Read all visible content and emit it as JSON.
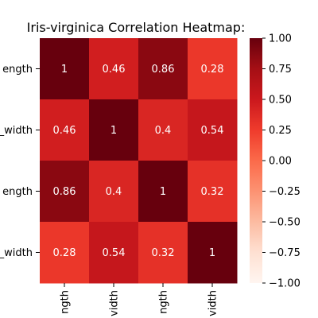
{
  "chart_data": {
    "type": "heatmap",
    "title": "Iris-virginica Correlation Heatmap:",
    "row_labels_visible": [
      "ength",
      "_width",
      "ength",
      "_width"
    ],
    "col_labels_visible": [
      "ngth",
      "vidth",
      "ngth",
      "vidth"
    ],
    "values": [
      [
        1,
        0.46,
        0.86,
        0.28
      ],
      [
        0.46,
        1,
        0.4,
        0.54
      ],
      [
        0.86,
        0.4,
        1,
        0.32
      ],
      [
        0.28,
        0.54,
        0.32,
        1
      ]
    ],
    "cell_labels": [
      [
        "1",
        "0.46",
        "0.86",
        "0.28"
      ],
      [
        "0.46",
        "1",
        "0.4",
        "0.54"
      ],
      [
        "0.86",
        "0.4",
        "1",
        "0.32"
      ],
      [
        "0.28",
        "0.54",
        "0.32",
        "1"
      ]
    ],
    "colorbar": {
      "range": [
        -1.0,
        1.0
      ],
      "ticks": [
        1.0,
        0.75,
        0.5,
        0.25,
        0.0,
        -0.25,
        -0.5,
        -0.75,
        -1.0
      ],
      "tick_labels": [
        "1.00",
        "0.75",
        "0.50",
        "0.25",
        "0.00",
        "−0.25",
        "−0.50",
        "−0.75",
        "−1.00"
      ],
      "colormap": "Reds"
    }
  }
}
